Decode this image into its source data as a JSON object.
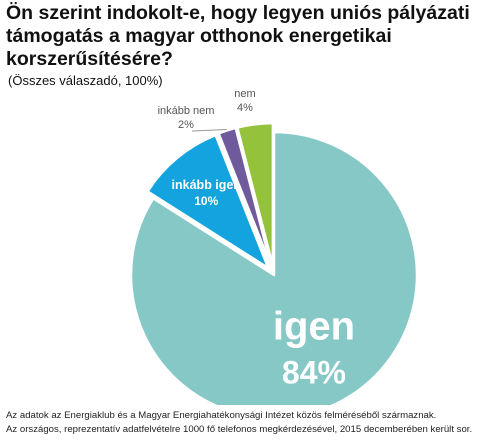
{
  "title": "Ön szerint indokolt-e, hogy legyen uniós pályázati támogatás a magyar otthonok energetikai korszerűsítésére?",
  "subtitle": "(Összes válaszadó, 100%)",
  "footnotes": [
    "Az adatok az Energiaklub és a Magyar Energiahatékonysági Intézet közös felméréséből származnak.",
    "Az országos, reprezentatív adatfelvételre 1000 fő telefonos megkérdezésével,  2015 decemberében került sor."
  ],
  "chart_data": {
    "type": "pie",
    "slices": [
      {
        "label": "igen",
        "value": 84,
        "value_label": "84%",
        "color": "#86c8c6",
        "exploded": false
      },
      {
        "label": "inkább igen",
        "value": 10,
        "value_label": "10%",
        "color": "#13a3de",
        "exploded": true
      },
      {
        "label": "inkább nem",
        "value": 2,
        "value_label": "2%",
        "color": "#6f5b9c",
        "exploded": true
      },
      {
        "label": "nem",
        "value": 4,
        "value_label": "4%",
        "color": "#94c23b",
        "exploded": true
      }
    ]
  }
}
